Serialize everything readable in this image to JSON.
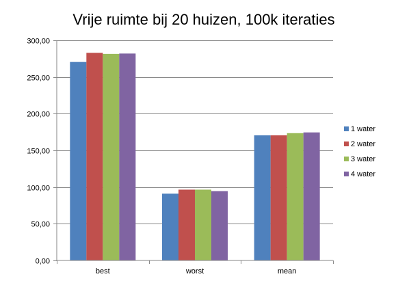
{
  "chart_data": {
    "type": "bar",
    "title": "Vrije ruimte bij 20 huizen, 100k iteraties",
    "xlabel": "",
    "ylabel": "",
    "categories": [
      "best",
      "worst",
      "mean"
    ],
    "series": [
      {
        "name": "1 water",
        "values": [
          270.5,
          91.0,
          170.5
        ],
        "color": "#4F81BD"
      },
      {
        "name": "2 water",
        "values": [
          283.0,
          96.5,
          170.5
        ],
        "color": "#C0504D"
      },
      {
        "name": "3 water",
        "values": [
          281.5,
          96.5,
          173.5
        ],
        "color": "#9BBB59"
      },
      {
        "name": "4 water",
        "values": [
          282.0,
          94.5,
          174.5
        ],
        "color": "#8064A2"
      }
    ],
    "ylim": [
      0,
      300
    ],
    "yticks": [
      0,
      50,
      100,
      150,
      200,
      250,
      300
    ],
    "ytick_labels": [
      "0,00",
      "50,00",
      "100,00",
      "150,00",
      "200,00",
      "250,00",
      "300,00"
    ],
    "grid": true,
    "legend_position": "right"
  }
}
